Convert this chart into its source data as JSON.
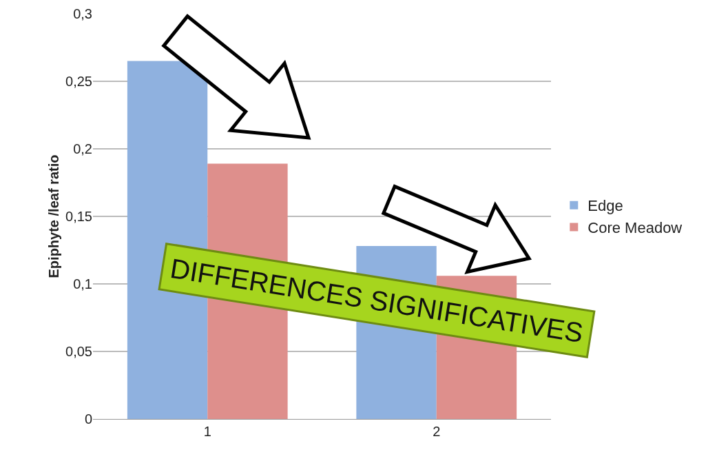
{
  "chart_data": {
    "type": "bar",
    "ylabel": "Epiphyte /leaf ratio",
    "categories": [
      "1",
      "2"
    ],
    "series": [
      {
        "name": "Edge",
        "color": "#8fb1df",
        "values": [
          0.265,
          0.128
        ]
      },
      {
        "name": "Core Meadow",
        "color": "#de8f8c",
        "values": [
          0.189,
          0.106
        ]
      }
    ],
    "ylim": [
      0,
      0.3
    ],
    "yticks": [
      {
        "value": 0,
        "label": "0"
      },
      {
        "value": 0.05,
        "label": "0,05"
      },
      {
        "value": 0.1,
        "label": "0,1"
      },
      {
        "value": 0.15,
        "label": "0,15"
      },
      {
        "value": 0.2,
        "label": "0,2"
      },
      {
        "value": 0.25,
        "label": "0,25"
      },
      {
        "value": 0.3,
        "label": "0,3"
      }
    ],
    "grid": "y",
    "legend": "right",
    "annotations": [
      "DIFFERENCES SIGNIFICATIVES"
    ]
  }
}
